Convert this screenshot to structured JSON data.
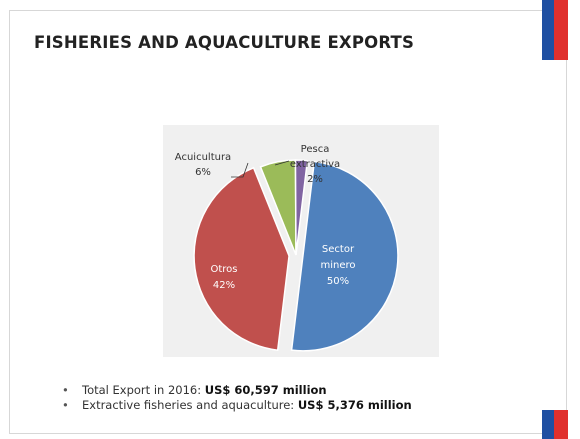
{
  "slide": {
    "title": "FISHERIES AND AQUACULTURE EXPORTS",
    "flag_colors": {
      "blue": "#1f4fa2",
      "red": "#e0302d"
    }
  },
  "chart_data": {
    "type": "pie",
    "title": "",
    "slices": [
      {
        "label": "Sector minero",
        "value": 50,
        "display": "50%",
        "color": "#4f81bd",
        "exploded": true
      },
      {
        "label": "Otros",
        "value": 42,
        "display": "42%",
        "color": "#c0504d",
        "exploded": true
      },
      {
        "label": "Acuicultura",
        "value": 6,
        "display": "6%",
        "color": "#9bbb59",
        "exploded": false
      },
      {
        "label": "Pesca extractiva",
        "value": 2,
        "display": "2%",
        "color": "#8064a2",
        "exploded": false
      }
    ],
    "background": "#f0f0f0",
    "labels": {
      "acuicultura_name": "Acuicultura",
      "acuicultura_pct": "6%",
      "pesca_name_1": "Pesca",
      "pesca_name_2": "extractiva",
      "pesca_pct": "2%",
      "sector_name_1": "Sector",
      "sector_name_2": "minero",
      "sector_pct": "50%",
      "otros_name": "Otros",
      "otros_pct": "42%"
    }
  },
  "bullets": [
    {
      "text": "Total Export in 2016: ",
      "bold": "US$ 60,597 million"
    },
    {
      "text": "Extractive fisheries and aquaculture: ",
      "bold": "US$ 5,376 million"
    }
  ]
}
